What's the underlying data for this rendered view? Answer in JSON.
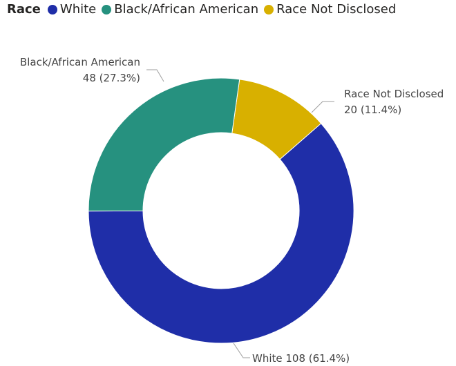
{
  "chart_data": {
    "type": "pie",
    "style": "donut",
    "legend": {
      "title": "Race",
      "placement": "top-left"
    },
    "slices": [
      {
        "name": "White",
        "value": 108,
        "percent": "61.4%",
        "color": "#1f2ea8",
        "label": "White 108 (61.4%)"
      },
      {
        "name": "Black/African American",
        "value": 48,
        "percent": "27.3%",
        "color": "#26917f",
        "label_line1": "Black/African American",
        "label_line2": "48 (27.3%)"
      },
      {
        "name": "Race Not Disclosed",
        "value": 20,
        "percent": "11.4%",
        "color": "#d8b000",
        "label_line1": "Race Not Disclosed",
        "label_line2": "20 (11.4%)"
      }
    ]
  }
}
